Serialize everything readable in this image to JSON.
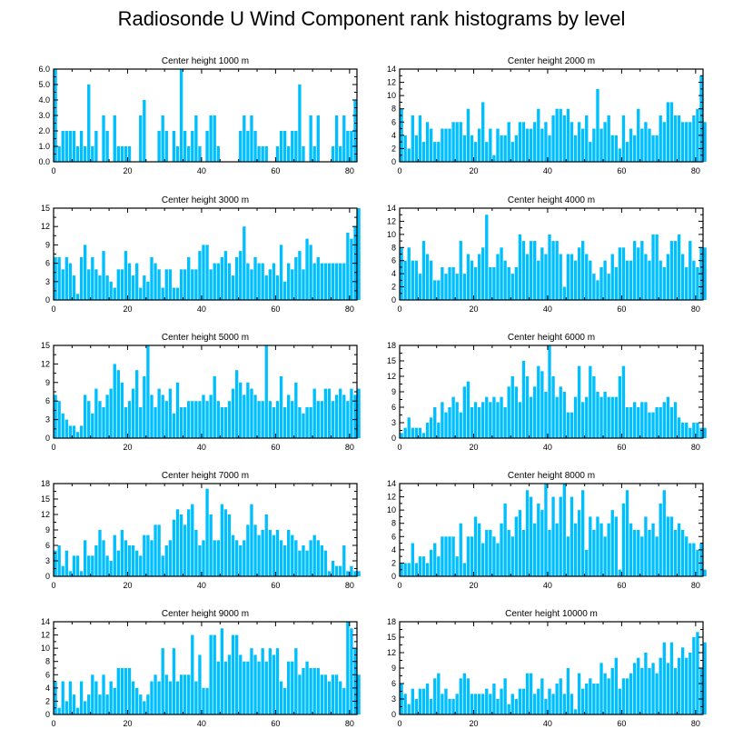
{
  "title": "Radiosonde U Wind Component rank histograms by level",
  "bar_color": "#00bfff",
  "chart_data": [
    {
      "type": "bar",
      "title": "Center height 1000 m",
      "xlim": [
        0,
        82
      ],
      "xticks": [
        0,
        20,
        40,
        60,
        80
      ],
      "ylim": [
        0,
        6
      ],
      "yticks": [
        0,
        1,
        2,
        3,
        4,
        5,
        6
      ],
      "ytick_labels": [
        "0.0",
        "1.0",
        "2.0",
        "3.0",
        "4.0",
        "5.0",
        "6.0"
      ],
      "values": [
        6,
        1,
        2,
        2,
        2,
        2,
        1,
        2,
        1,
        5,
        1,
        2,
        0,
        3,
        2,
        0,
        3,
        1,
        1,
        1,
        1,
        0,
        0,
        3,
        4,
        0,
        0,
        0,
        2,
        3,
        2,
        0,
        2,
        1,
        6,
        2,
        1,
        2,
        3,
        1,
        0,
        2,
        3,
        3,
        1,
        0,
        0,
        0,
        0,
        0,
        2,
        3,
        2,
        3,
        2,
        1,
        1,
        1,
        0,
        0,
        1,
        2,
        2,
        1,
        2,
        2,
        5,
        1,
        0,
        3,
        1,
        3,
        0,
        0,
        0,
        1,
        3,
        1,
        3,
        2,
        2,
        4
      ]
    },
    {
      "type": "bar",
      "title": "Center height 2000 m",
      "xlim": [
        0,
        82
      ],
      "xticks": [
        0,
        20,
        40,
        60,
        80
      ],
      "ylim": [
        0,
        14
      ],
      "yticks": [
        0,
        2,
        4,
        6,
        8,
        10,
        12,
        14
      ],
      "ytick_labels": [
        "0",
        "2",
        "4",
        "6",
        "8",
        "10",
        "12",
        "14"
      ],
      "values": [
        8,
        4,
        2,
        7,
        4,
        7,
        3,
        6,
        5,
        3,
        3,
        5,
        5,
        5,
        6,
        6,
        6,
        4,
        8,
        4,
        3,
        5,
        9,
        3,
        5,
        1,
        5,
        4,
        4,
        6,
        3,
        4,
        6,
        6,
        5,
        5,
        6,
        8,
        5,
        6,
        4,
        7,
        8,
        8,
        7,
        8,
        6,
        4,
        6,
        5,
        7,
        3,
        5,
        11,
        5,
        6,
        7,
        4,
        4,
        2,
        7,
        3,
        5,
        4,
        8,
        5,
        6,
        5,
        4,
        4,
        7,
        6,
        9,
        9,
        7,
        7,
        6,
        6,
        6,
        7,
        8,
        13,
        6
      ]
    },
    {
      "type": "bar",
      "title": "Center height 3000 m",
      "xlim": [
        0,
        82
      ],
      "xticks": [
        0,
        20,
        40,
        60,
        80
      ],
      "ylim": [
        0,
        15
      ],
      "yticks": [
        0,
        3,
        6,
        9,
        12,
        15
      ],
      "ytick_labels": [
        "0",
        "3",
        "6",
        "9",
        "12",
        "15"
      ],
      "values": [
        7,
        7,
        5,
        7,
        6,
        4,
        1,
        7,
        9,
        5,
        7,
        5,
        4,
        8,
        4,
        3,
        2,
        5,
        5,
        8,
        6,
        4,
        6,
        2,
        4,
        3,
        7,
        6,
        5,
        2,
        5,
        5,
        2,
        2,
        5,
        5,
        7,
        5,
        5,
        8,
        9,
        9,
        5,
        6,
        6,
        7,
        8,
        6,
        4,
        7,
        8,
        12,
        6,
        5,
        7,
        6,
        6,
        4,
        5,
        6,
        4,
        9,
        3,
        6,
        5,
        7,
        8,
        5,
        10,
        9,
        6,
        7,
        6,
        6,
        6,
        6,
        6,
        6,
        6,
        11,
        10,
        12,
        15
      ]
    },
    {
      "type": "bar",
      "title": "Center height 4000 m",
      "xlim": [
        0,
        82
      ],
      "xticks": [
        0,
        20,
        40,
        60,
        80
      ],
      "ylim": [
        0,
        14
      ],
      "yticks": [
        0,
        2,
        4,
        6,
        8,
        10,
        12,
        14
      ],
      "ytick_labels": [
        "0",
        "2",
        "4",
        "6",
        "8",
        "10",
        "12",
        "14"
      ],
      "values": [
        8,
        6,
        8,
        6,
        6,
        4,
        9,
        7,
        6,
        3,
        3,
        5,
        4,
        5,
        5,
        4,
        9,
        4,
        7,
        6,
        5,
        7,
        8,
        13,
        5,
        5,
        7,
        8,
        6,
        5,
        4,
        5,
        10,
        9,
        7,
        9,
        9,
        6,
        8,
        7,
        10,
        9,
        9,
        7,
        2,
        7,
        7,
        6,
        8,
        9,
        7,
        6,
        4,
        3,
        5,
        6,
        4,
        7,
        5,
        8,
        8,
        6,
        6,
        9,
        8,
        9,
        7,
        6,
        10,
        10,
        6,
        5,
        7,
        9,
        9,
        10,
        7,
        5,
        9,
        6,
        5,
        8,
        8
      ]
    },
    {
      "type": "bar",
      "title": "Center height 5000 m",
      "xlim": [
        0,
        82
      ],
      "xticks": [
        0,
        20,
        40,
        60,
        80
      ],
      "ylim": [
        0,
        15
      ],
      "yticks": [
        0,
        3,
        6,
        9,
        12,
        15
      ],
      "ytick_labels": [
        "0",
        "3",
        "6",
        "9",
        "12",
        "15"
      ],
      "values": [
        7,
        6,
        4,
        3,
        2,
        2,
        1,
        2,
        7,
        6,
        4,
        8,
        6,
        5,
        7,
        8,
        12,
        11,
        9,
        5,
        6,
        8,
        11,
        5,
        10,
        15,
        7,
        5,
        8,
        7,
        6,
        8,
        4,
        9,
        5,
        5,
        6,
        6,
        6,
        6,
        7,
        6,
        7,
        10,
        6,
        5,
        5,
        6,
        8,
        11,
        9,
        7,
        9,
        8,
        7,
        6,
        6,
        15,
        6,
        5,
        6,
        10,
        5,
        7,
        6,
        9,
        5,
        4,
        5,
        5,
        8,
        6,
        6,
        8,
        8,
        6,
        7,
        8,
        7,
        6,
        8,
        7,
        8
      ]
    },
    {
      "type": "bar",
      "title": "Center height 6000 m",
      "xlim": [
        0,
        82
      ],
      "xticks": [
        0,
        20,
        40,
        60,
        80
      ],
      "ylim": [
        0,
        18
      ],
      "yticks": [
        0,
        3,
        6,
        9,
        12,
        15,
        18
      ],
      "ytick_labels": [
        "0",
        "3",
        "6",
        "9",
        "12",
        "15",
        "18"
      ],
      "values": [
        1,
        2,
        4,
        2,
        2,
        2,
        1,
        3,
        4,
        6,
        3,
        7,
        5,
        6,
        8,
        7,
        5,
        10,
        11,
        6,
        7,
        6,
        7,
        8,
        7,
        8,
        7,
        8,
        6,
        10,
        12,
        10,
        7,
        15,
        12,
        8,
        10,
        14,
        13,
        9,
        18,
        12,
        8,
        10,
        9,
        5,
        5,
        8,
        14,
        7,
        8,
        14,
        12,
        9,
        8,
        9,
        8,
        8,
        8,
        12,
        14,
        6,
        6,
        7,
        6,
        7,
        7,
        5,
        5,
        6,
        6,
        7,
        8,
        6,
        7,
        4,
        3,
        3,
        2,
        3,
        3,
        2,
        2
      ]
    },
    {
      "type": "bar",
      "title": "Center height 7000 m",
      "xlim": [
        0,
        82
      ],
      "xticks": [
        0,
        20,
        40,
        60,
        80
      ],
      "ylim": [
        0,
        18
      ],
      "yticks": [
        0,
        3,
        6,
        9,
        12,
        15,
        18
      ],
      "ytick_labels": [
        "0",
        "3",
        "6",
        "9",
        "12",
        "15",
        "18"
      ],
      "values": [
        5,
        6,
        2,
        5,
        1,
        4,
        4,
        1,
        7,
        4,
        4,
        6,
        9,
        7,
        4,
        3,
        8,
        5,
        9,
        7,
        6,
        6,
        5,
        4,
        8,
        8,
        7,
        10,
        10,
        4,
        6,
        7,
        11,
        13,
        12,
        10,
        13,
        14,
        9,
        6,
        7,
        17,
        12,
        7,
        7,
        14,
        13,
        12,
        8,
        7,
        6,
        7,
        10,
        14,
        10,
        8,
        9,
        12,
        9,
        8,
        9,
        7,
        6,
        9,
        8,
        7,
        5,
        6,
        5,
        7,
        8,
        7,
        6,
        5,
        1,
        3,
        2,
        2,
        6,
        1,
        2,
        1,
        1
      ]
    },
    {
      "type": "bar",
      "title": "Center height 8000 m",
      "xlim": [
        0,
        82
      ],
      "xticks": [
        0,
        20,
        40,
        60,
        80
      ],
      "ylim": [
        0,
        14
      ],
      "yticks": [
        0,
        2,
        4,
        6,
        8,
        10,
        12,
        14
      ],
      "ytick_labels": [
        "0",
        "2",
        "4",
        "6",
        "8",
        "10",
        "12",
        "14"
      ],
      "values": [
        2,
        2,
        2,
        5,
        2,
        3,
        3,
        2,
        4,
        5,
        3,
        6,
        6,
        6,
        6,
        3,
        8,
        2,
        6,
        6,
        9,
        8,
        5,
        7,
        7,
        6,
        5,
        8,
        11,
        7,
        6,
        9,
        10,
        7,
        13,
        12,
        8,
        11,
        10,
        14,
        7,
        12,
        8,
        12,
        14,
        6,
        12,
        8,
        10,
        13,
        4,
        9,
        7,
        9,
        8,
        6,
        8,
        10,
        9,
        1,
        11,
        13,
        8,
        7,
        7,
        6,
        9,
        7,
        8,
        6,
        11,
        13,
        9,
        9,
        7,
        8,
        7,
        6,
        5,
        5,
        4,
        5,
        1
      ]
    },
    {
      "type": "bar",
      "title": "Center height 9000 m",
      "xlim": [
        0,
        82
      ],
      "xticks": [
        0,
        20,
        40,
        60,
        80
      ],
      "ylim": [
        0,
        14
      ],
      "yticks": [
        0,
        2,
        4,
        6,
        8,
        10,
        12,
        14
      ],
      "ytick_labels": [
        "0",
        "2",
        "4",
        "6",
        "8",
        "10",
        "12",
        "14"
      ],
      "values": [
        5,
        1,
        5,
        2,
        5,
        3,
        1,
        5,
        2,
        3,
        6,
        5,
        3,
        6,
        3,
        5,
        4,
        7,
        7,
        7,
        7,
        5,
        4,
        3,
        2,
        3,
        5,
        6,
        5,
        10,
        6,
        5,
        10,
        5,
        6,
        6,
        6,
        12,
        5,
        9,
        4,
        4,
        12,
        12,
        8,
        13,
        8,
        9,
        12,
        12,
        9,
        8,
        8,
        10,
        9,
        8,
        10,
        8,
        10,
        9,
        10,
        5,
        4,
        8,
        8,
        10,
        6,
        7,
        8,
        7,
        7,
        7,
        6,
        6,
        5,
        6,
        6,
        5,
        4,
        14,
        13,
        10,
        6
      ]
    },
    {
      "type": "bar",
      "title": "Center height 10000 m",
      "xlim": [
        0,
        82
      ],
      "xticks": [
        0,
        20,
        40,
        60,
        80
      ],
      "ylim": [
        0,
        18
      ],
      "yticks": [
        0,
        3,
        6,
        9,
        12,
        15,
        18
      ],
      "ytick_labels": [
        "0",
        "3",
        "6",
        "9",
        "12",
        "15",
        "18"
      ],
      "values": [
        6,
        4,
        2,
        5,
        3,
        5,
        5,
        6,
        3,
        7,
        8,
        4,
        5,
        3,
        3,
        4,
        7,
        8,
        7,
        4,
        4,
        4,
        4,
        5,
        4,
        6,
        3,
        5,
        7,
        2,
        4,
        3,
        5,
        5,
        8,
        8,
        4,
        5,
        7,
        3,
        5,
        4,
        6,
        7,
        4,
        9,
        4,
        1,
        8,
        5,
        6,
        7,
        6,
        6,
        10,
        8,
        7,
        9,
        11,
        5,
        7,
        7,
        8,
        10,
        11,
        9,
        12,
        9,
        10,
        8,
        11,
        14,
        10,
        14,
        9,
        11,
        13,
        11,
        12,
        15,
        16,
        9,
        14
      ]
    }
  ]
}
